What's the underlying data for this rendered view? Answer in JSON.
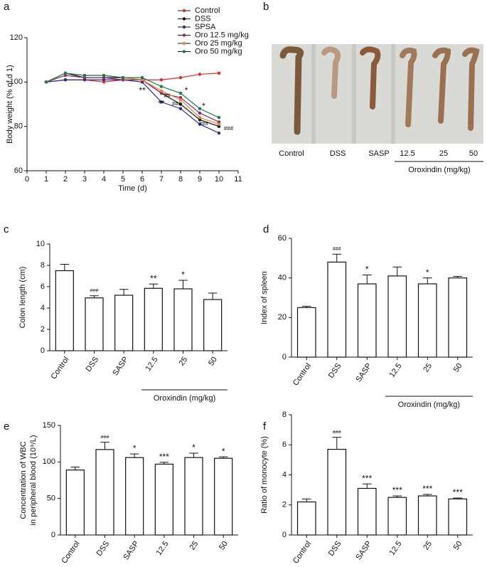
{
  "chart_data": [
    {
      "type": "line",
      "panel": "a",
      "xlabel": "Time (d)",
      "ylabel": "Body weight (% of d 1)",
      "x": [
        1,
        2,
        3,
        4,
        5,
        6,
        7,
        8,
        9,
        10
      ],
      "xlim": [
        0,
        11
      ],
      "xticks": [
        0,
        1,
        2,
        3,
        4,
        5,
        6,
        7,
        8,
        9,
        10,
        11
      ],
      "ylim": [
        60,
        120
      ],
      "yticks": [
        60,
        80,
        100,
        120
      ],
      "series": [
        {
          "name": "Control",
          "color": "#e8262a",
          "values": [
            100,
            101,
            101,
            100,
            101,
            101,
            101,
            102,
            103.5,
            104
          ]
        },
        {
          "name": "DSS",
          "color": "#111111",
          "values": [
            100,
            104,
            102,
            102,
            102,
            101,
            95,
            90,
            83,
            80
          ]
        },
        {
          "name": "SPSA",
          "color": "#2b2b8a",
          "values": [
            100,
            101,
            101,
            101,
            101,
            100,
            91,
            88,
            81,
            77
          ]
        },
        {
          "name": "Oro 12.5 mg/kg",
          "color": "#8a2a6a",
          "values": [
            100,
            103,
            102,
            102,
            101,
            101,
            95,
            93,
            86,
            82
          ]
        },
        {
          "name": "Oro 25 mg/kg",
          "color": "#f07f3c",
          "values": [
            100,
            104,
            103,
            103,
            102,
            101,
            96,
            92,
            84,
            81
          ]
        },
        {
          "name": "Oro 50 mg/kg",
          "color": "#1a7a4a",
          "values": [
            100,
            104,
            103,
            103,
            102,
            102,
            98,
            95,
            88,
            84
          ]
        }
      ],
      "annotations": [
        {
          "x": 6,
          "y": 96,
          "text": "**"
        },
        {
          "x": 7,
          "y": 90,
          "text": "**"
        },
        {
          "x": 7.3,
          "y": 93.5,
          "text": "##"
        },
        {
          "x": 7.8,
          "y": 90,
          "text": "###"
        },
        {
          "x": 8.3,
          "y": 96,
          "text": "*"
        },
        {
          "x": 9.2,
          "y": 89,
          "text": "*"
        },
        {
          "x": 9.2,
          "y": 81,
          "text": "###"
        },
        {
          "x": 10.5,
          "y": 79,
          "text": "###"
        }
      ]
    },
    {
      "type": "bar",
      "panel": "c",
      "ylabel": [
        "Colon length (cm)"
      ],
      "categories": [
        "Control",
        "DSS",
        "SASP",
        "12.5",
        "25",
        "50"
      ],
      "values": [
        7.5,
        4.95,
        5.2,
        5.85,
        5.8,
        4.8
      ],
      "errors": [
        0.6,
        0.2,
        0.55,
        0.4,
        0.8,
        0.6
      ],
      "annotations": [
        null,
        "###",
        null,
        "**",
        "*",
        null
      ],
      "group_label": "Oroxindin (mg/kg)",
      "ylim": [
        0,
        10
      ],
      "yticks": [
        0,
        2,
        4,
        6,
        8,
        10
      ]
    },
    {
      "type": "bar",
      "panel": "d",
      "ylabel": [
        "Index of spleen"
      ],
      "categories": [
        "Control",
        "DSS",
        "SASP",
        "12.5",
        "25",
        "50"
      ],
      "values": [
        25,
        48,
        37,
        41,
        37,
        40
      ],
      "errors": [
        0.7,
        4,
        4.5,
        4.5,
        3,
        0.8
      ],
      "annotations": [
        null,
        "###",
        "*",
        null,
        "*",
        null
      ],
      "group_label": "Oroxindin (mg/kg)",
      "ylim": [
        0,
        60
      ],
      "yticks": [
        0,
        20,
        40,
        60
      ]
    },
    {
      "type": "bar",
      "panel": "e",
      "ylabel": [
        "Concentration of WBC",
        "in peripheral blood (10⁹/L)"
      ],
      "categories": [
        "Control",
        "DSS",
        "SASP",
        "12.5",
        "25",
        "50"
      ],
      "values": [
        89,
        117,
        106,
        97,
        106,
        105
      ],
      "errors": [
        4,
        10,
        5,
        2.5,
        6,
        2
      ],
      "annotations": [
        null,
        "###",
        "*",
        "***",
        "*",
        "*"
      ],
      "group_label": "Oroxindin (mg/kg)",
      "ylim": [
        0,
        150
      ],
      "yticks": [
        0,
        50,
        100,
        150
      ]
    },
    {
      "type": "bar",
      "panel": "f",
      "ylabel": [
        "Ratio of monocyte (%)"
      ],
      "categories": [
        "Control",
        "DSS",
        "SASP",
        "12.5",
        "25",
        "50"
      ],
      "values": [
        2.2,
        5.7,
        3.1,
        2.5,
        2.6,
        2.4
      ],
      "errors": [
        0.2,
        0.8,
        0.3,
        0.1,
        0.1,
        0.06
      ],
      "annotations": [
        null,
        "###",
        "***",
        "***",
        "***",
        "***"
      ],
      "group_label": "Oroxindin (mg/kg)",
      "ylim": [
        0,
        8
      ],
      "yticks": [
        0,
        2,
        4,
        6,
        8
      ]
    }
  ],
  "photo_panel": {
    "panel": "b",
    "labels": [
      "Control",
      "DSS",
      "SASP",
      "12.5",
      "25",
      "50"
    ],
    "group_label": "Oroxindin (mg/kg)"
  }
}
